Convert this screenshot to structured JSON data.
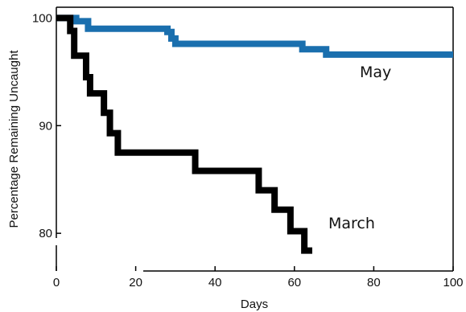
{
  "chart_data": {
    "type": "line",
    "title": "",
    "xlabel": "Days",
    "ylabel": "Percentage Remaining Uncaught",
    "xlim": [
      0,
      100
    ],
    "ylim": [
      76.5,
      101
    ],
    "x_ticks": [
      0,
      20,
      40,
      60,
      80,
      100
    ],
    "x_tick_labels": [
      "0",
      "20",
      "40",
      "60",
      "80",
      "100"
    ],
    "y_ticks": [
      80,
      90,
      100
    ],
    "y_tick_labels": [
      "80",
      "90",
      "100"
    ],
    "grid": false,
    "legend": "none",
    "step_curve": true,
    "series": [
      {
        "name": "May",
        "color": "#1a6fae",
        "x": [
          0,
          5,
          8,
          28,
          29,
          30,
          62,
          68,
          100
        ],
        "y": [
          100,
          99.7,
          99,
          98.7,
          98.1,
          97.6,
          97.1,
          96.6,
          96.6
        ]
      },
      {
        "name": "March",
        "color": "#000000",
        "x": [
          0,
          3.5,
          4.5,
          7.5,
          8.5,
          12,
          13.5,
          15.5,
          35,
          51,
          55,
          59,
          62.5,
          64.5
        ],
        "y": [
          100,
          98.8,
          96.5,
          94.5,
          93,
          91.2,
          89.3,
          87.5,
          85.8,
          84,
          82.2,
          80.2,
          78.4,
          78.4
        ]
      }
    ],
    "annotations": [
      "May",
      "March"
    ]
  }
}
